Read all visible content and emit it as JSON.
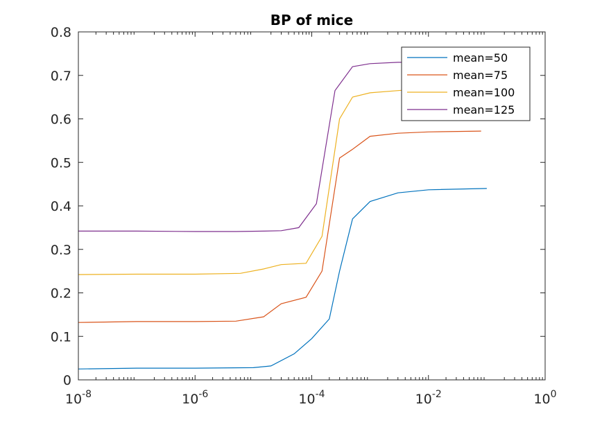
{
  "chart_data": {
    "type": "line",
    "title": "BP of mice",
    "xlabel": "",
    "ylabel": "",
    "xscale": "log",
    "xlim": [
      1e-08,
      1
    ],
    "ylim": [
      0,
      0.8
    ],
    "x_ticks": [
      {
        "value": 1e-08,
        "base": "10",
        "exp": "-8"
      },
      {
        "value": 1e-06,
        "base": "10",
        "exp": "-6"
      },
      {
        "value": 0.0001,
        "base": "10",
        "exp": "-4"
      },
      {
        "value": 0.01,
        "base": "10",
        "exp": "-2"
      },
      {
        "value": 1,
        "base": "10",
        "exp": "0"
      }
    ],
    "y_ticks": [
      "0",
      "0.1",
      "0.2",
      "0.3",
      "0.4",
      "0.5",
      "0.6",
      "0.7",
      "0.8"
    ],
    "grid": false,
    "legend_position": "top-right",
    "series": [
      {
        "name": "mean=50",
        "color": "#0072BD",
        "x": [
          1e-08,
          1e-07,
          1e-06,
          1e-05,
          2e-05,
          5e-05,
          0.0001,
          0.0002,
          0.0003,
          0.0005,
          0.001,
          0.003,
          0.01,
          0.1
        ],
        "y": [
          0.025,
          0.027,
          0.027,
          0.028,
          0.032,
          0.06,
          0.095,
          0.14,
          0.25,
          0.37,
          0.41,
          0.43,
          0.437,
          0.44
        ]
      },
      {
        "name": "mean=75",
        "color": "#D95319",
        "x": [
          1e-08,
          1e-07,
          1e-06,
          5e-06,
          1.5e-05,
          3e-05,
          8e-05,
          0.00015,
          0.0003,
          0.0005,
          0.001,
          0.003,
          0.01,
          0.08
        ],
        "y": [
          0.132,
          0.134,
          0.134,
          0.135,
          0.145,
          0.175,
          0.19,
          0.25,
          0.51,
          0.53,
          0.56,
          0.567,
          0.57,
          0.572
        ]
      },
      {
        "name": "mean=100",
        "color": "#EDB120",
        "x": [
          1e-08,
          1e-07,
          1e-06,
          6e-06,
          1.5e-05,
          3e-05,
          8e-05,
          0.00015,
          0.0003,
          0.0005,
          0.001,
          0.003,
          0.01
        ],
        "y": [
          0.242,
          0.243,
          0.243,
          0.245,
          0.255,
          0.265,
          0.268,
          0.33,
          0.6,
          0.65,
          0.66,
          0.665,
          0.67
        ]
      },
      {
        "name": "mean=125",
        "color": "#7E2F8E",
        "x": [
          1e-08,
          1e-07,
          1e-06,
          5e-06,
          1.5e-05,
          3e-05,
          6e-05,
          0.00012,
          0.00025,
          0.0005,
          0.001,
          0.003,
          0.01
        ],
        "y": [
          0.342,
          0.342,
          0.341,
          0.341,
          0.342,
          0.343,
          0.35,
          0.405,
          0.665,
          0.72,
          0.727,
          0.73,
          0.73
        ]
      }
    ]
  }
}
